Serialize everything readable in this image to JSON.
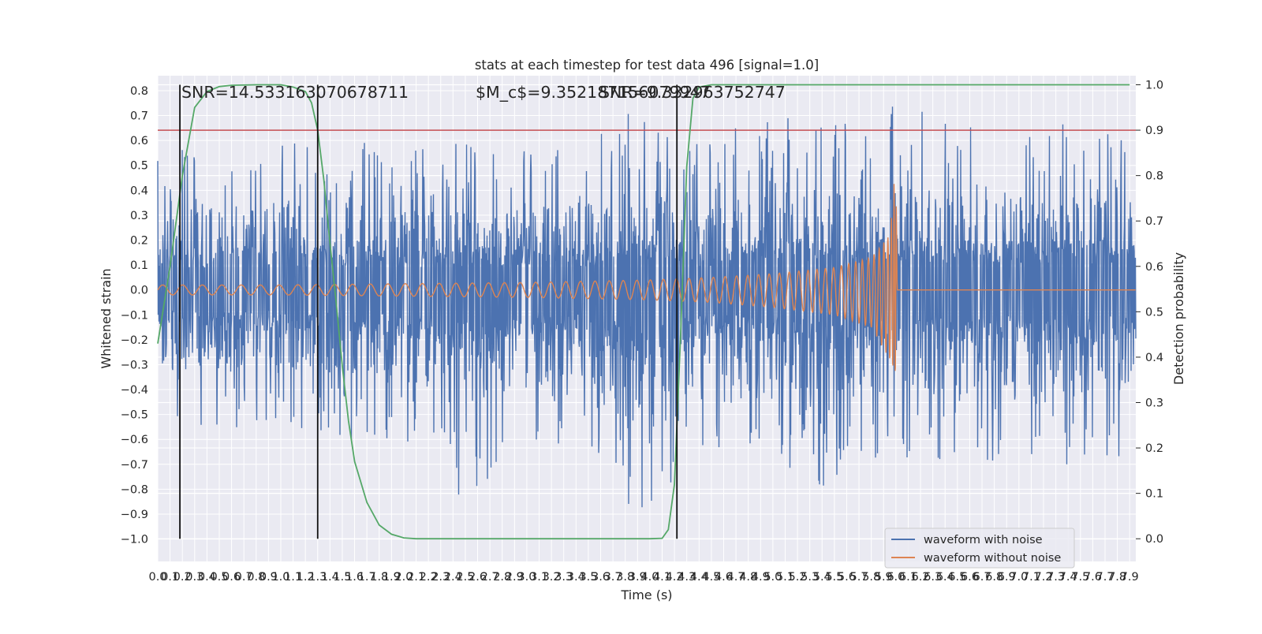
{
  "chart_data": {
    "type": "line",
    "title": "stats at each timestep for test data 496 [signal=1.0]",
    "xlabel": "Time (s)",
    "ylabel": "Whitened strain",
    "y2label": "Detection probability",
    "xlim": [
      0.0,
      7.95
    ],
    "ylim": [
      -1.09,
      0.86
    ],
    "y2lim": [
      -0.05,
      1.02
    ],
    "x_ticks": [
      "0.0",
      "0.1",
      "0.2",
      "0.3",
      "0.4",
      "0.5",
      "0.6",
      "0.7",
      "0.8",
      "0.9",
      "1.0",
      "1.1",
      "1.2",
      "1.3",
      "1.4",
      "1.5",
      "1.6",
      "1.7",
      "1.8",
      "1.9",
      "2.0",
      "2.1",
      "2.2",
      "2.3",
      "2.4",
      "2.5",
      "2.6",
      "2.7",
      "2.8",
      "2.9",
      "3.0",
      "3.1",
      "3.2",
      "3.3",
      "3.4",
      "3.5",
      "3.6",
      "3.7",
      "3.8",
      "3.9",
      "4.0",
      "4.1",
      "4.2",
      "4.3",
      "4.4",
      "4.5",
      "4.6",
      "4.7",
      "4.8",
      "4.9",
      "5.0",
      "5.1",
      "5.2",
      "5.3",
      "5.4",
      "5.5",
      "5.6",
      "5.7",
      "5.8",
      "5.9",
      "6.0",
      "6.1",
      "6.2",
      "6.3",
      "6.4",
      "6.5",
      "6.6",
      "6.7",
      "6.8",
      "6.9",
      "7.0",
      "7.1",
      "7.2",
      "7.3",
      "7.4",
      "7.5",
      "7.6",
      "7.7",
      "7.8",
      "7.9"
    ],
    "y_ticks": [
      "0.8",
      "0.7",
      "0.6",
      "0.5",
      "0.4",
      "0.3",
      "0.2",
      "0.1",
      "0.0",
      "−0.1",
      "−0.2",
      "−0.3",
      "−0.4",
      "−0.5",
      "−0.6",
      "−0.7",
      "−0.8",
      "−0.9",
      "−1.0"
    ],
    "y2_ticks": [
      "1.0",
      "0.9",
      "0.8",
      "0.7",
      "0.6",
      "0.5",
      "0.4",
      "0.3",
      "0.2",
      "0.1",
      "0.0"
    ],
    "grid": true,
    "legend_position": "lower right",
    "series": [
      {
        "name": "waveform with noise",
        "color": "#4c72b0",
        "axis": "left",
        "envelope": {
          "time": [
            0.0,
            0.5,
            1.0,
            1.5,
            2.0,
            2.5,
            3.0,
            3.5,
            3.9,
            4.2,
            4.5,
            5.0,
            5.5,
            5.8,
            6.0,
            6.5,
            7.0,
            7.5,
            7.95
          ],
          "upper": [
            0.55,
            0.6,
            0.62,
            0.6,
            0.58,
            0.6,
            0.6,
            0.62,
            0.76,
            0.68,
            0.62,
            0.7,
            0.67,
            0.66,
            0.76,
            0.68,
            0.66,
            0.72,
            0.6
          ],
          "lower": [
            -0.52,
            -0.58,
            -0.55,
            -0.6,
            -0.62,
            -0.85,
            -0.6,
            -0.65,
            -1.0,
            -0.75,
            -0.65,
            -0.7,
            -0.82,
            -0.7,
            -0.7,
            -0.72,
            -0.7,
            -0.78,
            -0.65
          ]
        }
      },
      {
        "name": "waveform without noise",
        "color": "#dd8452",
        "axis": "left",
        "envelope": {
          "time": [
            0.0,
            1.0,
            2.0,
            3.0,
            4.0,
            4.5,
            5.0,
            5.5,
            5.8,
            5.95,
            6.0,
            6.01,
            7.95
          ],
          "upper": [
            0.02,
            0.02,
            0.025,
            0.03,
            0.04,
            0.05,
            0.065,
            0.09,
            0.13,
            0.22,
            0.52,
            0.0,
            0.0
          ],
          "lower": [
            -0.02,
            -0.02,
            -0.025,
            -0.03,
            -0.04,
            -0.05,
            -0.07,
            -0.1,
            -0.15,
            -0.28,
            -0.35,
            0.0,
            0.0
          ]
        }
      },
      {
        "color": "#55a868",
        "axis": "right",
        "x": [
          0.0,
          0.1,
          0.2,
          0.3,
          0.4,
          0.5,
          0.6,
          0.8,
          1.0,
          1.1,
          1.2,
          1.25,
          1.3,
          1.35,
          1.4,
          1.45,
          1.5,
          1.55,
          1.6,
          1.7,
          1.8,
          1.9,
          2.0,
          2.1,
          2.2,
          3.0,
          4.0,
          4.1,
          4.15,
          4.2,
          4.25,
          4.3,
          4.35,
          4.4,
          4.5,
          5.0,
          6.0,
          7.0,
          7.9
        ],
        "y": [
          0.43,
          0.6,
          0.8,
          0.95,
          0.985,
          0.996,
          0.999,
          1.0,
          1.0,
          0.995,
          0.985,
          0.96,
          0.9,
          0.79,
          0.65,
          0.52,
          0.38,
          0.26,
          0.17,
          0.08,
          0.03,
          0.01,
          0.002,
          0.0,
          0.0,
          0.0,
          0.0,
          0.001,
          0.02,
          0.12,
          0.45,
          0.82,
          0.97,
          0.995,
          1.0,
          1.0,
          1.0,
          1.0,
          1.0
        ]
      }
    ],
    "hlines": [
      {
        "y2": 0.9,
        "color": "#c44e52"
      }
    ],
    "vlines": [
      0.18,
      1.3,
      4.22
    ],
    "annotations": [
      {
        "text": "SNR=14.533163070678711"
      },
      {
        "text": "$M_c$=9.352187156079947"
      },
      {
        "text": "SNR=9.332963752747"
      }
    ]
  },
  "legend_labels": [
    "waveform with noise",
    "waveform without noise"
  ]
}
